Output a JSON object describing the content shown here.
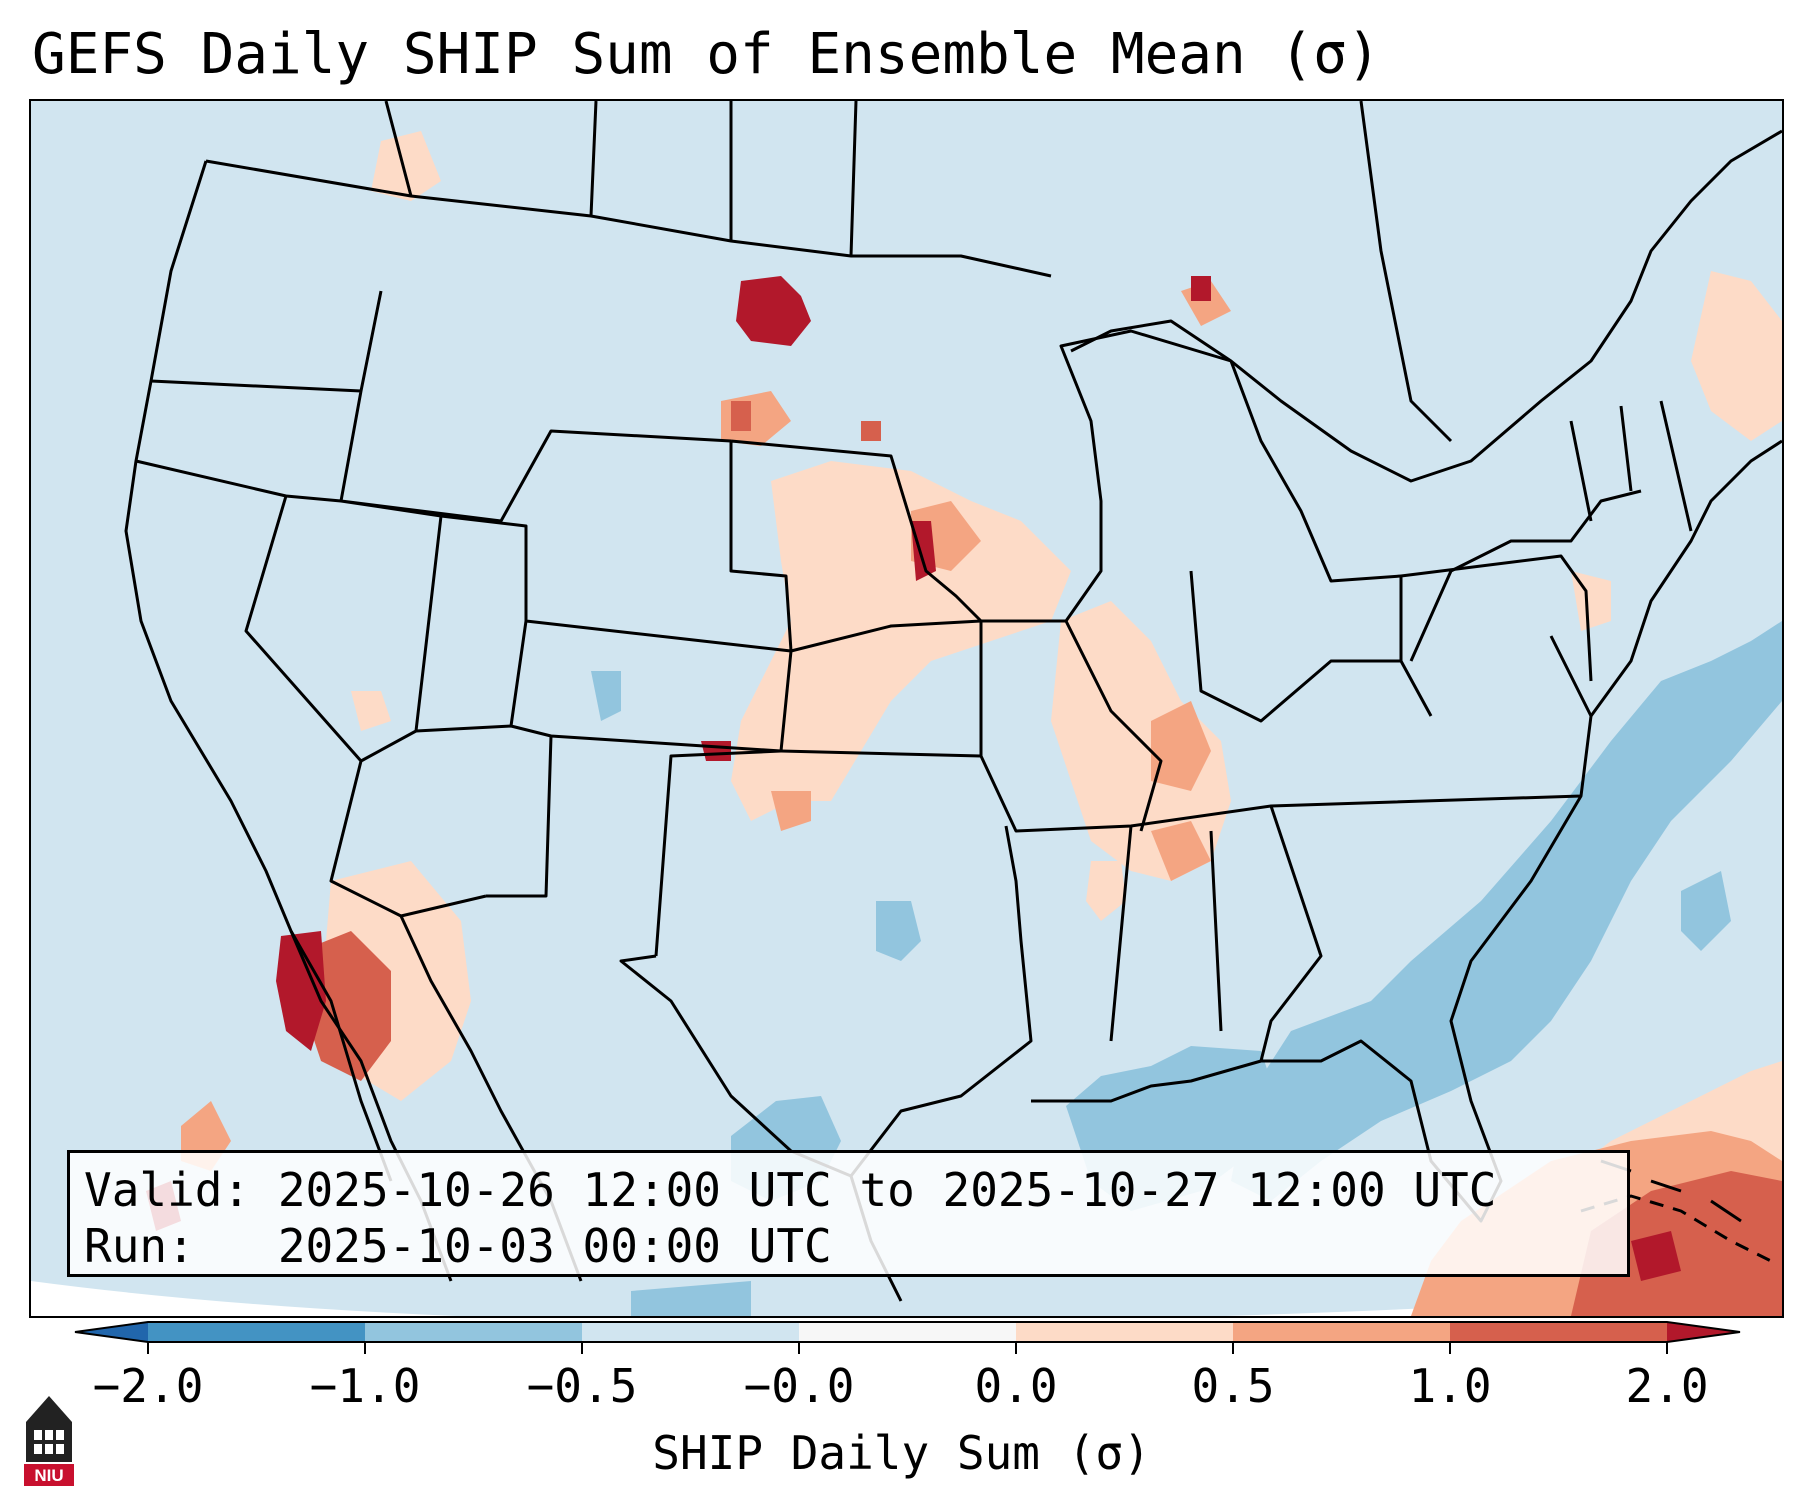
{
  "title": "GEFS Daily SHIP Sum of Ensemble Mean (σ)",
  "info": {
    "valid": "Valid: 2025-10-26 12:00 UTC to 2025-10-27 12:00 UTC",
    "run": "Run:   2025-10-03 00:00 UTC"
  },
  "colorbar": {
    "label": "SHIP Daily Sum (σ)",
    "ticks": [
      "−2.0",
      "−1.0",
      "−0.5",
      "−0.0",
      "0.0",
      "0.5",
      "1.0",
      "2.0"
    ],
    "colors": [
      "#4393c3",
      "#92c5de",
      "#d1e5f0",
      "#f7f7f7",
      "#fddbc7",
      "#f4a582",
      "#d6604d"
    ],
    "under_color": "#2166ac",
    "over_color": "#b2182b"
  },
  "logo": {
    "text": "NIU",
    "icon": "niu-tower-logo-icon"
  }
}
